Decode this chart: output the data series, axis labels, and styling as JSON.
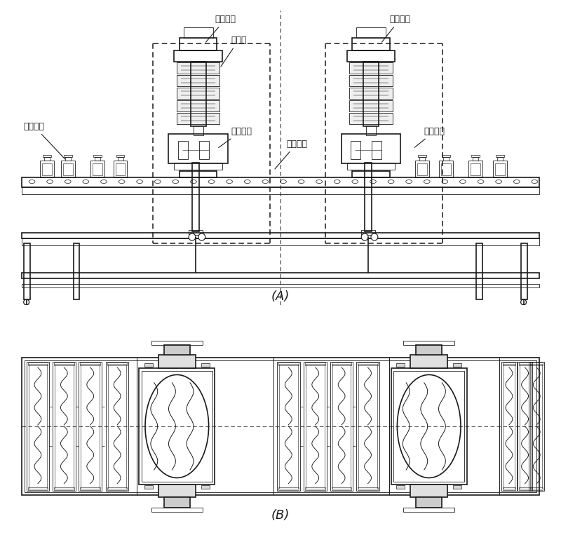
{
  "bg_color": "#ffffff",
  "line_color": "#1a1a1a",
  "fig_width": 8.0,
  "fig_height": 7.63,
  "label_A": "(A)",
  "label_B": "(B)",
  "labels": {
    "madian_process": "码垓过程",
    "chai_process": "拆垓过程",
    "xinhe_stack": "信盒垓",
    "madian_comp": "码垓组件",
    "chai_comp": "拆垓组件",
    "single_xinhe": "单个信盒",
    "transport": "传输机构"
  }
}
